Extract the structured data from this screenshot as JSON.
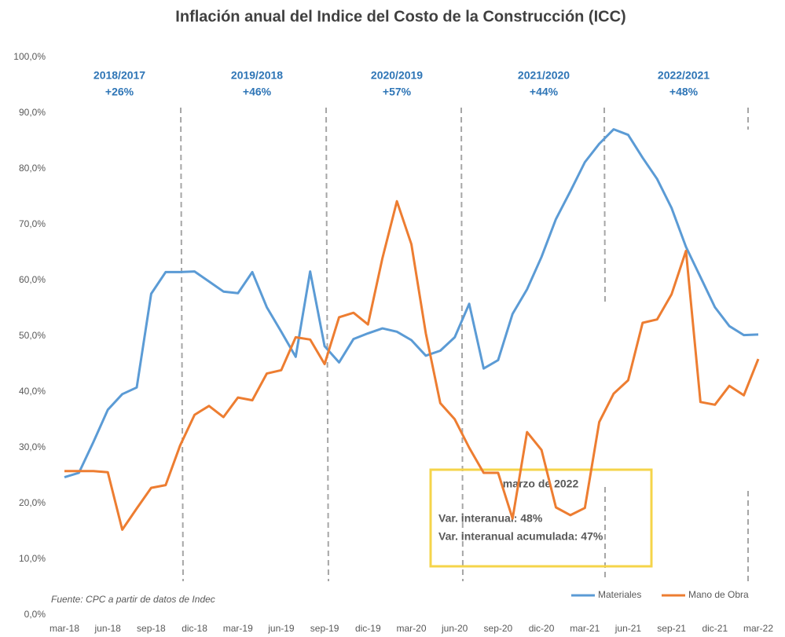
{
  "chart_data": {
    "type": "line",
    "title": "Inflación anual del Indice del Costo de la Construcción (ICC)",
    "categories": [
      "mar-18",
      null,
      null,
      "jun-18",
      null,
      null,
      "sep-18",
      null,
      null,
      "dic-18",
      null,
      null,
      "mar-19",
      null,
      null,
      "jun-19",
      null,
      null,
      "sep-19",
      null,
      null,
      "dic-19",
      null,
      null,
      "mar-20",
      null,
      null,
      "jun-20",
      null,
      null,
      "sep-20",
      null,
      null,
      "dic-20",
      null,
      null,
      "mar-21",
      null,
      null,
      "jun-21",
      null,
      null,
      "sep-21",
      null,
      null,
      "dic-21",
      null,
      null,
      "mar-22"
    ],
    "series": [
      {
        "name": "Materiales",
        "color": "#5b9bd5",
        "values": [
          24.7,
          25.5,
          31,
          36.8,
          39.6,
          40.8,
          57.6,
          61.5,
          61.5,
          61.6,
          59.8,
          58,
          57.7,
          61.5,
          55.2,
          50.8,
          46.3,
          61.6,
          48.2,
          45.3,
          49.5,
          50.5,
          51.4,
          50.8,
          49.3,
          46.5,
          47.4,
          49.8,
          55.8,
          44.2,
          45.7,
          54,
          58.4,
          64.2,
          71,
          76,
          81.2,
          84.5,
          87.1,
          86.1,
          82,
          78.2,
          73,
          66,
          60.6,
          55.2,
          51.8,
          50.2,
          50.3
        ]
      },
      {
        "name": "Mano de Obra",
        "color": "#ed7d31",
        "values": [
          25.8,
          25.8,
          25.8,
          25.6,
          15.3,
          19.1,
          22.8,
          23.3,
          30.4,
          35.9,
          37.5,
          35.5,
          39,
          38.5,
          43.3,
          43.9,
          49.8,
          49.4,
          45,
          53.4,
          54.2,
          52.1,
          64,
          74.2,
          66.5,
          50.5,
          38,
          35.1,
          30,
          25.5,
          25.5,
          17.3,
          32.8,
          29.6,
          19.3,
          17.9,
          19.2,
          34.6,
          39.7,
          42.1,
          52.4,
          53,
          57.5,
          65.3,
          38.2,
          37.7,
          41.1,
          39.4,
          45.9
        ]
      }
    ],
    "ylim": [
      0,
      100
    ],
    "yticks": [
      {
        "value": 0,
        "label": "0,0%"
      },
      {
        "value": 10,
        "label": "10,0%"
      },
      {
        "value": 20,
        "label": "20,0%"
      },
      {
        "value": 30,
        "label": "30,0%"
      },
      {
        "value": 40,
        "label": "40,0%"
      },
      {
        "value": 50,
        "label": "50,0%"
      },
      {
        "value": 60,
        "label": "60,0%"
      },
      {
        "value": 70,
        "label": "70,0%"
      },
      {
        "value": 80,
        "label": "80,0%"
      },
      {
        "value": 90,
        "label": "90,0%"
      },
      {
        "value": 100,
        "label": "100,0%"
      }
    ],
    "grid": false,
    "legend": "bottom-right",
    "periods": [
      {
        "label": "2018/2017",
        "change": "+26%"
      },
      {
        "label": "2019/2018",
        "change": "+46%"
      },
      {
        "label": "2020/2019",
        "change": "+57%"
      },
      {
        "label": "2021/2020",
        "change": "+44%"
      },
      {
        "label": "2022/2021",
        "change": "+48%"
      }
    ],
    "box": {
      "title": "marzo de 2022",
      "lines": [
        "Var. interanual: 48%",
        "Var. interanual acumulada: 47%"
      ]
    },
    "source": "Fuente: CPC a partir de datos de Indec"
  }
}
